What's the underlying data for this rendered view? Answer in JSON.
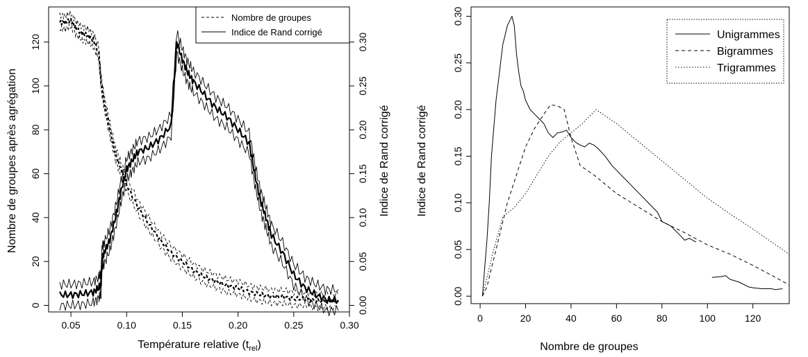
{
  "chart_data": [
    {
      "type": "line",
      "title": "",
      "xlabel": "Température relative (t",
      "xlabel_sub": "rel",
      "xlabel_close": ")",
      "ylabel_left": "Nombre de groupes après agrégation",
      "ylabel_right": "Indice de Rand corrigé",
      "xlim": [
        0.03,
        0.3
      ],
      "ylim_left": [
        -3,
        136
      ],
      "ylim_right": [
        -0.0075,
        0.34
      ],
      "x_ticks": [
        "0.05",
        "0.10",
        "0.15",
        "0.20",
        "0.25",
        "0.30"
      ],
      "x_tick_values": [
        0.05,
        0.1,
        0.15,
        0.2,
        0.25,
        0.3
      ],
      "y_left_ticks": [
        "0",
        "20",
        "40",
        "60",
        "80",
        "100",
        "120"
      ],
      "y_left_tick_values": [
        0,
        20,
        40,
        60,
        80,
        100,
        120
      ],
      "y_right_ticks": [
        "0.00",
        "0.05",
        "0.10",
        "0.15",
        "0.20",
        "0.25",
        "0.30"
      ],
      "y_right_tick_values": [
        0,
        0.05,
        0.1,
        0.15,
        0.2,
        0.25,
        0.3
      ],
      "legend_position": "top-right",
      "legend": [
        "Nombre de groupes",
        "Indice de Rand corrigé"
      ],
      "series": [
        {
          "name": "Nombre de groupes",
          "axis": "left",
          "style": "dashed",
          "band_offset": 3,
          "x": [
            0.04,
            0.045,
            0.05,
            0.055,
            0.06,
            0.065,
            0.07,
            0.075,
            0.077,
            0.08,
            0.085,
            0.09,
            0.095,
            0.1,
            0.11,
            0.12,
            0.13,
            0.14,
            0.15,
            0.16,
            0.17,
            0.18,
            0.19,
            0.2,
            0.21,
            0.22,
            0.23,
            0.24,
            0.25,
            0.26,
            0.27,
            0.28,
            0.29
          ],
          "values": [
            129,
            129,
            130,
            126,
            124,
            123,
            121,
            115,
            102,
            92,
            80,
            69,
            62,
            55,
            45,
            37,
            30,
            24,
            20,
            16,
            13,
            11,
            9,
            8,
            6,
            5,
            4,
            4,
            3,
            3,
            2,
            2,
            2
          ]
        },
        {
          "name": "Indice de Rand corrigé",
          "axis": "right",
          "style": "solid",
          "band_offset": 0.012,
          "x": [
            0.04,
            0.05,
            0.06,
            0.07,
            0.075,
            0.077,
            0.078,
            0.08,
            0.085,
            0.09,
            0.095,
            0.1,
            0.105,
            0.11,
            0.12,
            0.13,
            0.14,
            0.145,
            0.15,
            0.155,
            0.16,
            0.17,
            0.18,
            0.19,
            0.2,
            0.21,
            0.215,
            0.22,
            0.225,
            0.23,
            0.24,
            0.25,
            0.26,
            0.27,
            0.28,
            0.29
          ],
          "values": [
            0.012,
            0.012,
            0.013,
            0.015,
            0.02,
            0.025,
            0.055,
            0.06,
            0.075,
            0.1,
            0.13,
            0.155,
            0.165,
            0.175,
            0.18,
            0.19,
            0.205,
            0.3,
            0.28,
            0.265,
            0.255,
            0.24,
            0.225,
            0.215,
            0.2,
            0.185,
            0.15,
            0.12,
            0.1,
            0.08,
            0.06,
            0.035,
            0.02,
            0.012,
            0.006,
            0.006
          ]
        }
      ]
    },
    {
      "type": "line",
      "title": "",
      "xlabel": "Nombre de groupes",
      "ylabel": "Indice de Rand corrigé",
      "xlim": [
        -4,
        136
      ],
      "ylim": [
        -0.008,
        0.31
      ],
      "x_ticks": [
        "0",
        "20",
        "40",
        "60",
        "80",
        "100",
        "120"
      ],
      "x_tick_values": [
        0,
        20,
        40,
        60,
        80,
        100,
        120
      ],
      "y_ticks": [
        "0.00",
        "0.05",
        "0.10",
        "0.15",
        "0.20",
        "0.25",
        "0.30"
      ],
      "y_tick_values": [
        0,
        0.05,
        0.1,
        0.15,
        0.2,
        0.25,
        0.3
      ],
      "legend_position": "top-right",
      "legend": [
        "Unigrammes",
        "Bigrammes",
        "Trigrammes"
      ],
      "series": [
        {
          "name": "Unigrammes",
          "style": "solid",
          "segments": [
            {
              "x": [
                1,
                2,
                3,
                4,
                5,
                6,
                7,
                8,
                9,
                10,
                11,
                12,
                13,
                14,
                15,
                16,
                17,
                18,
                19,
                20,
                22,
                24,
                26,
                28,
                30,
                32,
                34,
                36,
                38,
                40,
                42,
                44,
                46,
                48,
                50,
                52,
                55,
                58,
                62,
                66,
                70,
                74,
                78,
                80,
                84,
                88,
                90,
                92,
                95
              ],
              "y": [
                0.0,
                0.03,
                0.06,
                0.1,
                0.15,
                0.18,
                0.21,
                0.23,
                0.25,
                0.27,
                0.28,
                0.29,
                0.295,
                0.3,
                0.29,
                0.26,
                0.24,
                0.225,
                0.22,
                0.21,
                0.2,
                0.195,
                0.19,
                0.185,
                0.175,
                0.17,
                0.175,
                0.176,
                0.178,
                0.17,
                0.165,
                0.162,
                0.16,
                0.164,
                0.162,
                0.158,
                0.15,
                0.14,
                0.13,
                0.12,
                0.11,
                0.1,
                0.09,
                0.08,
                0.075,
                0.065,
                0.06,
                0.062,
                0.058
              ]
            },
            {
              "x": [
                102,
                106,
                108,
                110,
                114,
                118,
                120,
                124,
                128,
                130,
                133
              ],
              "y": [
                0.02,
                0.021,
                0.022,
                0.018,
                0.015,
                0.01,
                0.009,
                0.008,
                0.008,
                0.007,
                0.008
              ]
            }
          ]
        },
        {
          "name": "Bigrammes",
          "style": "dashed",
          "segments": [
            {
              "x": [
                1,
                3,
                5,
                8,
                12,
                16,
                20,
                24,
                28,
                31,
                34,
                37,
                40,
                44,
                50,
                60,
                70,
                80,
                90,
                100,
                110,
                120,
                130,
                136
              ],
              "y": [
                0.0,
                0.01,
                0.03,
                0.06,
                0.1,
                0.13,
                0.16,
                0.18,
                0.195,
                0.205,
                0.204,
                0.2,
                0.17,
                0.14,
                0.13,
                0.11,
                0.095,
                0.08,
                0.068,
                0.055,
                0.045,
                0.033,
                0.02,
                0.012
              ]
            }
          ]
        },
        {
          "name": "Trigrammes",
          "style": "dotted",
          "segments": [
            {
              "x": [
                1,
                3,
                6,
                10,
                15,
                20,
                25,
                30,
                35,
                40,
                45,
                51,
                60,
                70,
                80,
                90,
                100,
                110,
                120,
                130,
                136
              ],
              "y": [
                0.0,
                0.02,
                0.05,
                0.085,
                0.095,
                0.11,
                0.13,
                0.15,
                0.165,
                0.175,
                0.185,
                0.2,
                0.185,
                0.165,
                0.145,
                0.125,
                0.105,
                0.088,
                0.072,
                0.055,
                0.045
              ]
            }
          ]
        }
      ]
    }
  ]
}
